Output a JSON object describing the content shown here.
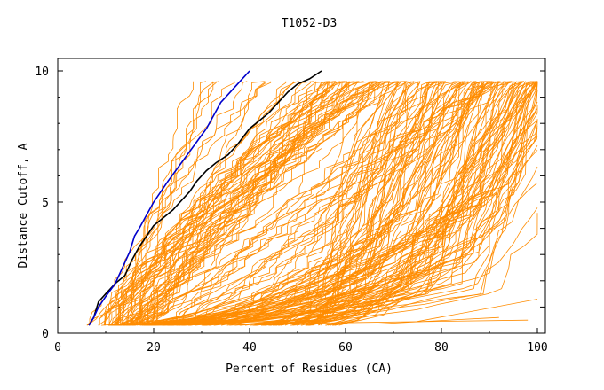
{
  "chart_data": {
    "type": "line",
    "title": "T1052-D3",
    "xlabel": "Percent of Residues (CA)",
    "ylabel": "Distance Cutoff, A",
    "xlim": [
      0,
      100
    ],
    "ylim": [
      0,
      10
    ],
    "x_ticks": [
      0,
      20,
      40,
      60,
      80,
      100
    ],
    "y_ticks": [
      0,
      5,
      10
    ],
    "grid": false,
    "legend": "none",
    "colors": {
      "bundle": "#ff8c00",
      "black_series": "#000000",
      "blue_series": "#0000cc",
      "axis": "#000000",
      "background": "#ffffff"
    },
    "series": [
      {
        "color": "#000000",
        "points": [
          [
            6.5,
            0.3
          ],
          [
            7.5,
            0.6
          ],
          [
            8.5,
            1.2
          ],
          [
            10,
            1.5
          ],
          [
            12,
            1.9
          ],
          [
            14,
            2.2
          ],
          [
            15.5,
            2.8
          ],
          [
            17,
            3.3
          ],
          [
            18.5,
            3.7
          ],
          [
            20,
            4.1
          ],
          [
            22,
            4.4
          ],
          [
            24,
            4.7
          ],
          [
            26,
            5.1
          ],
          [
            27.5,
            5.4
          ],
          [
            29,
            5.8
          ],
          [
            31,
            6.2
          ],
          [
            33,
            6.5
          ],
          [
            35.5,
            6.8
          ],
          [
            37.5,
            7.2
          ],
          [
            40,
            7.8
          ],
          [
            42,
            8.1
          ],
          [
            44,
            8.4
          ],
          [
            46,
            8.8
          ],
          [
            48,
            9.2
          ],
          [
            50,
            9.5
          ],
          [
            52.5,
            9.7
          ],
          [
            55,
            10
          ]
        ]
      },
      {
        "color": "#0000cc",
        "points": [
          [
            6.5,
            0.3
          ],
          [
            7.5,
            0.6
          ],
          [
            8.5,
            1.0
          ],
          [
            10,
            1.4
          ],
          [
            12,
            1.9
          ],
          [
            13.5,
            2.5
          ],
          [
            15,
            3.1
          ],
          [
            16,
            3.7
          ],
          [
            17,
            4.0
          ],
          [
            18.5,
            4.5
          ],
          [
            20,
            5.0
          ],
          [
            21.5,
            5.4
          ],
          [
            23,
            5.8
          ],
          [
            25,
            6.3
          ],
          [
            27,
            6.8
          ],
          [
            29,
            7.3
          ],
          [
            31,
            7.8
          ],
          [
            32.5,
            8.3
          ],
          [
            34,
            8.8
          ],
          [
            36,
            9.2
          ],
          [
            38,
            9.6
          ],
          [
            40,
            10
          ]
        ]
      }
    ],
    "bundle_series_count": 200
  }
}
